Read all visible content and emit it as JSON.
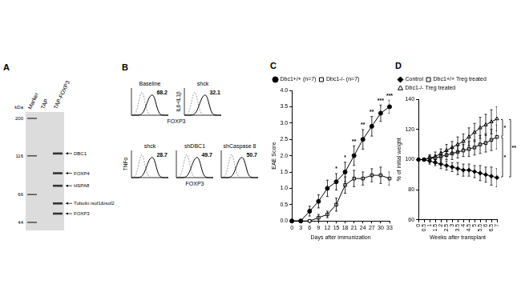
{
  "panel_a": {
    "panel": "A",
    "y_label": "kDa",
    "lanes": [
      "Marker",
      "TAP",
      "TAP-FOXP3"
    ],
    "markers": [
      200,
      116,
      66,
      44
    ],
    "bands": [
      {
        "name": "DBC1",
        "kda": 120
      },
      {
        "name": "FOXP4",
        "kda": 90
      },
      {
        "name": "HSPA8",
        "kda": 75
      },
      {
        "name": "Tubulin isof1&isof2",
        "kda": 58
      },
      {
        "name": "FOXP3",
        "kda": 50
      }
    ]
  },
  "panel_b": {
    "panel": "B",
    "rows": [
      {
        "x_label": "FOXP3",
        "plots": [
          {
            "title": "Baseline",
            "value": 68.2
          },
          {
            "title": "shck",
            "y_label": "IL6+IL1β",
            "value": 32.1
          }
        ]
      },
      {
        "x_label": "FOXP3",
        "plots": [
          {
            "title": "shck",
            "y_label": "TNFα",
            "value": 28.7
          },
          {
            "title": "shDBC1",
            "value": 49.7
          },
          {
            "title": "shCaspase 8",
            "value": 50.7
          }
        ]
      }
    ]
  },
  "chart_data": [
    {
      "panel": "C",
      "type": "line",
      "x_label": "Days after immunization",
      "y_label": "EAE Score",
      "x": [
        0,
        3,
        6,
        9,
        12,
        15,
        18,
        21,
        24,
        27,
        30,
        33
      ],
      "xlim": [
        0,
        33
      ],
      "xticks": [
        0,
        3,
        6,
        9,
        12,
        15,
        18,
        21,
        24,
        27,
        30,
        33
      ],
      "ylim": [
        0,
        4
      ],
      "yticks": [
        {
          "value": 0,
          "label": "0.0"
        },
        0.5,
        {
          "value": 1,
          "label": "1.0"
        },
        1.5,
        {
          "value": 2,
          "label": "2.0"
        },
        2.5,
        {
          "value": 3,
          "label": "3.0"
        },
        3.5,
        {
          "value": 4,
          "label": "4.0"
        }
      ],
      "grid": false,
      "legend": "top-left",
      "series": [
        {
          "name": "Dbc1+/+ (n=7)",
          "color": "#000000",
          "marker": "circle",
          "line_style": "solid",
          "values": [
            0,
            0,
            0.3,
            0.6,
            1.0,
            1.2,
            1.5,
            2.0,
            2.5,
            2.9,
            3.3,
            3.5
          ],
          "error": [
            0,
            0,
            0.15,
            0.2,
            0.25,
            0.25,
            0.3,
            0.3,
            0.3,
            0.3,
            0.25,
            0.2
          ]
        },
        {
          "name": "Dbc1-/- (n=7)",
          "color": "#000000",
          "marker": "square-open",
          "line_style": "solid",
          "values": [
            0,
            0,
            0,
            0.1,
            0.2,
            0.5,
            1.1,
            1.3,
            1.3,
            1.4,
            1.4,
            1.3
          ],
          "error": [
            0,
            0,
            0,
            0.1,
            0.1,
            0.2,
            0.25,
            0.25,
            0.2,
            0.2,
            0.25,
            0.2
          ]
        }
      ],
      "annotations": [
        {
          "x": 15,
          "text": "*"
        },
        {
          "x": 18,
          "text": "*"
        },
        {
          "x": 21,
          "text": "**"
        },
        {
          "x": 24,
          "text": "**"
        },
        {
          "x": 27,
          "text": "**"
        },
        {
          "x": 30,
          "text": "***"
        },
        {
          "x": 33,
          "text": "***"
        }
      ]
    },
    {
      "panel": "D",
      "type": "line",
      "x_label": "Weeks after transplant",
      "y_label": "% of initial weight",
      "x": [
        0,
        0.5,
        1,
        1.5,
        2,
        2.5,
        3,
        3.5,
        4,
        4.5,
        5,
        5.5,
        6,
        6.5,
        7
      ],
      "xlim": [
        0,
        7
      ],
      "xticks": [
        0,
        0.5,
        1,
        1.5,
        2,
        2.5,
        3,
        3.5,
        4,
        4.5,
        5,
        5.5,
        6,
        6.5,
        7
      ],
      "ylim": [
        60,
        140
      ],
      "yticks": [
        60,
        80,
        100,
        120,
        140
      ],
      "grid": false,
      "legend": "top-left",
      "series": [
        {
          "name": "Control",
          "color": "#000000",
          "marker": "diamond",
          "line_style": "solid",
          "values": [
            100,
            100,
            99,
            98,
            97,
            96,
            95,
            94,
            93,
            93,
            92,
            91,
            90,
            89,
            88
          ],
          "error": [
            0,
            1,
            2,
            2,
            3,
            3,
            3,
            4,
            4,
            4,
            4,
            5,
            5,
            6,
            6
          ]
        },
        {
          "name": "Dbc1+/+ Treg treated",
          "color": "#000000",
          "marker": "square-open",
          "line_style": "solid",
          "values": [
            100,
            100,
            101,
            101,
            102,
            103,
            104,
            105,
            106,
            107,
            108,
            110,
            111,
            113,
            115
          ],
          "error": [
            0,
            1,
            2,
            2,
            3,
            3,
            4,
            4,
            4,
            5,
            5,
            6,
            6,
            7,
            8
          ]
        },
        {
          "name": "Dbc1-/- Treg treated",
          "color": "#000000",
          "marker": "triangle-open",
          "line_style": "solid",
          "values": [
            100,
            100,
            101,
            102,
            104,
            106,
            108,
            110,
            112,
            115,
            118,
            121,
            123,
            125,
            127
          ],
          "error": [
            0,
            1,
            2,
            3,
            3,
            4,
            4,
            5,
            5,
            6,
            6,
            7,
            7,
            8,
            8
          ]
        }
      ],
      "annotations": [
        {
          "between": [
            "Dbc1+/+ Treg treated",
            "Dbc1-/- Treg treated"
          ],
          "text": "*"
        },
        {
          "between": [
            "Control",
            "Dbc1+/+ Treg treated"
          ],
          "text": "*"
        },
        {
          "between": [
            "Control",
            "Dbc1-/- Treg treated"
          ],
          "text": "**"
        }
      ]
    }
  ]
}
